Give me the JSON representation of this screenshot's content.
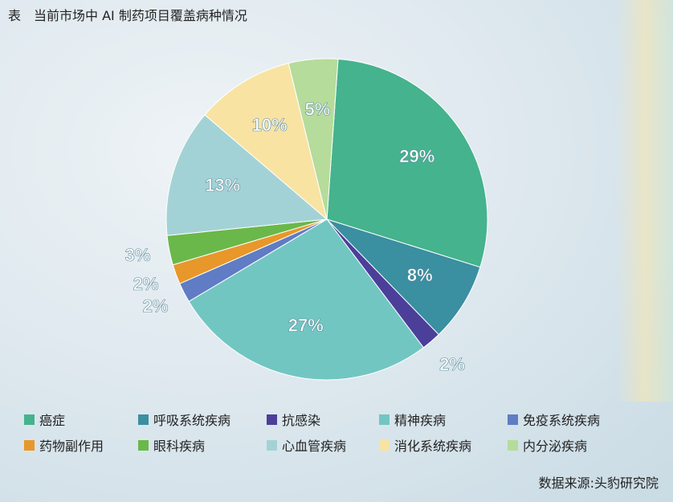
{
  "title": "表　当前市场中 AI 制药项目覆盖病种情况",
  "source": "数据来源:头豹研究院",
  "chart_data": {
    "type": "pie",
    "title": "表　当前市场中 AI 制药项目覆盖病种情况",
    "legend_position": "bottom",
    "categories": [
      "癌症",
      "呼吸系统疾病",
      "抗感染",
      "精神疾病",
      "免疫系统疾病",
      "药物副作用",
      "眼科疾病",
      "心血管疾病",
      "消化系统疾病",
      "内分泌疾病"
    ],
    "values": [
      29,
      8,
      2,
      27,
      2,
      2,
      3,
      13,
      10,
      5
    ],
    "labels": [
      "29%",
      "8%",
      "2%",
      "27%",
      "2%",
      "2%",
      "3%",
      "13%",
      "10%",
      "5%"
    ],
    "colors": [
      "#45b38d",
      "#3a8fa0",
      "#4b3f9a",
      "#72c6c2",
      "#5f7cc4",
      "#e8972a",
      "#6ab84a",
      "#a3d2d6",
      "#f8e3a3",
      "#b5dc9b"
    ]
  },
  "legend_order": [
    0,
    1,
    2,
    3,
    4,
    5,
    6,
    7,
    8,
    9
  ]
}
